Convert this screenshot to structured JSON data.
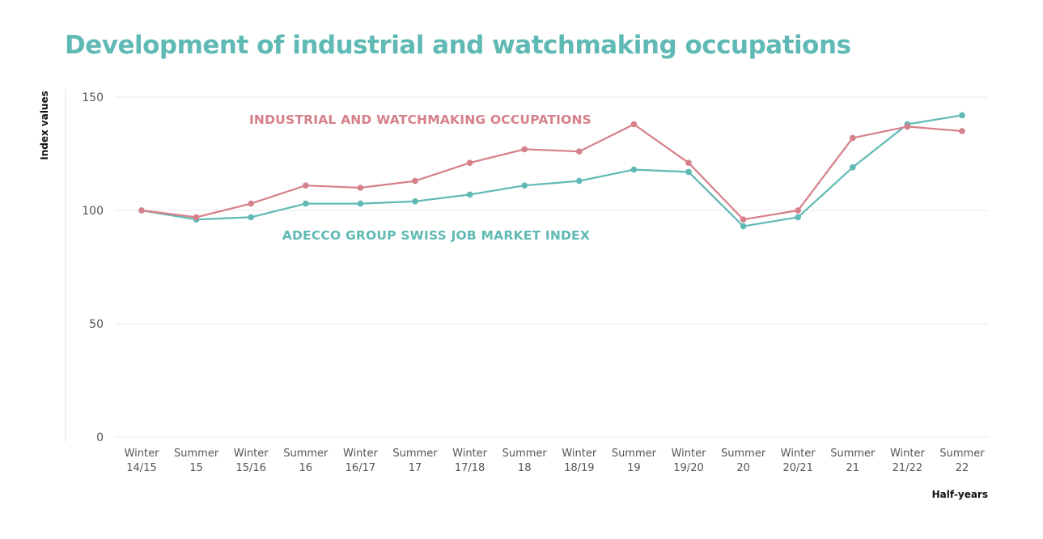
{
  "chart_data": {
    "type": "line",
    "title": "Development of industrial and watchmaking occupations",
    "xlabel": "Half-years",
    "ylabel": "Index values",
    "ylim": [
      0,
      150
    ],
    "yticks": [
      0,
      50,
      100,
      150
    ],
    "grid": true,
    "categories": [
      [
        "Winter",
        "14/15"
      ],
      [
        "Summer",
        "15"
      ],
      [
        "Winter",
        "15/16"
      ],
      [
        "Summer",
        "16"
      ],
      [
        "Winter",
        "16/17"
      ],
      [
        "Summer",
        "17"
      ],
      [
        "Winter",
        "17/18"
      ],
      [
        "Summer",
        "18"
      ],
      [
        "Winter",
        "18/19"
      ],
      [
        "Summer",
        "19"
      ],
      [
        "Winter",
        "19/20"
      ],
      [
        "Summer",
        "20"
      ],
      [
        "Winter",
        "20/21"
      ],
      [
        "Summer",
        "21"
      ],
      [
        "Winter",
        "21/22"
      ],
      [
        "Summer",
        "22"
      ]
    ],
    "series": [
      {
        "name": "ADECCO GROUP SWISS JOB MARKET INDEX",
        "color": "#5fb9b4",
        "values": [
          100,
          96,
          97,
          103,
          103,
          104,
          107,
          111,
          113,
          118,
          117,
          93,
          97,
          119,
          138,
          142
        ]
      },
      {
        "name": "INDUSTRIAL AND WATCHMAKING OCCUPATIONS",
        "color": "#d6808a",
        "values": [
          100,
          97,
          103,
          111,
          110,
          113,
          121,
          127,
          126,
          138,
          121,
          96,
          100,
          132,
          137,
          135
        ]
      }
    ],
    "legend_placement": "inline labels near lines"
  }
}
